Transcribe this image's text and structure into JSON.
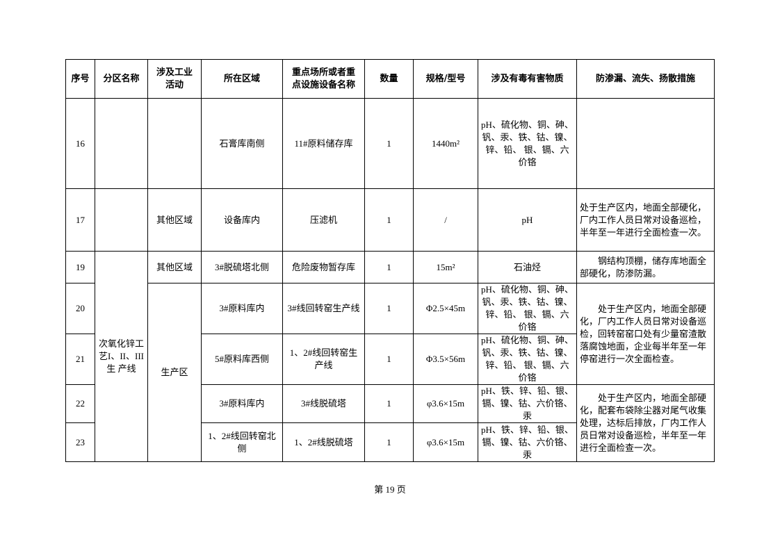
{
  "table": {
    "headers": [
      "序号",
      "分区名称",
      "涉及工业活动",
      "所在区域",
      "重点场所或者重点设施设备名称",
      "数量",
      "规格/型号",
      "涉及有毒有害物质",
      "防渗漏、流失、扬散措施"
    ],
    "rows": [
      {
        "no": "16",
        "zone": "",
        "activity": "",
        "area": "石膏库南侧",
        "facility": "11#原料储存库",
        "qty": "1",
        "spec": "1440m²",
        "substances": "pH、硫化物、铜、砷、钒、汞、铁、钴、镍、锌、铅、 银、镉、六价铬",
        "measures": ""
      },
      {
        "no": "17",
        "zone": "",
        "activity": "其他区域",
        "area": "设备库内",
        "facility": "压滤机",
        "qty": "1",
        "spec": "/",
        "substances": "pH",
        "measures": "处于生产区内，地面全部硬化，厂内工作人员日常对设备巡检，半年至一年进行全面检查一次。"
      },
      {
        "no": "19",
        "zone": "次氧化锌工艺I、II、III生 产线",
        "activity": "其他区域",
        "area": "3#脱硫塔北侧",
        "facility": "危险废物暂存库",
        "qty": "1",
        "spec": "15m²",
        "substances": "石油烃",
        "measures": "钢结构顶棚，储存库地面全部硬化，防渗防漏。"
      },
      {
        "no": "20",
        "activity": "生产区",
        "area": "3#原料库内",
        "facility": "3#线回转窑生产线",
        "qty": "1",
        "spec": "Φ2.5×45m",
        "substances": "pH、硫化物、铜、砷、钒、汞、铁、钴、镍、锌、铅、 银、镉、六价铬",
        "measures": "处于生产区内，地面全部硬化，厂内工作人员日常对设备巡检，回转窑窑口处有少量窑渣散落腐蚀地面，企业每半年至一年停窑进行一次全面检查。"
      },
      {
        "no": "21",
        "area": "5#原料库西侧",
        "facility": "1、2#线回转窑生产线",
        "qty": "1",
        "spec": "Φ3.5×56m",
        "substances": "pH、硫化物、铜、砷、钒、汞、铁、钴、镍、锌、铅、 银、镉、六价铬"
      },
      {
        "no": "22",
        "area": "3#原料库内",
        "facility": "3#线脱硫塔",
        "qty": "1",
        "spec": "φ3.6×15m",
        "substances": "pH、铁、锌、铅、银、镉、镍、钴、六价铬、汞",
        "measures": "处于生产区内，地面全部硬化，配套布袋除尘器对尾气收集处理，达标后排放，厂内工作人员日常对设备巡检，半年至一年进行全面检查一次。"
      },
      {
        "no": "23",
        "area": "1、2#线回转窑北侧",
        "facility": "1、2#线脱硫塔",
        "qty": "1",
        "spec": "φ3.6×15m",
        "substances": "pH、铁、锌、铅、银、镉、镍、钴、六价铬、汞"
      }
    ]
  },
  "footer": {
    "page_label": "第 19 页"
  }
}
